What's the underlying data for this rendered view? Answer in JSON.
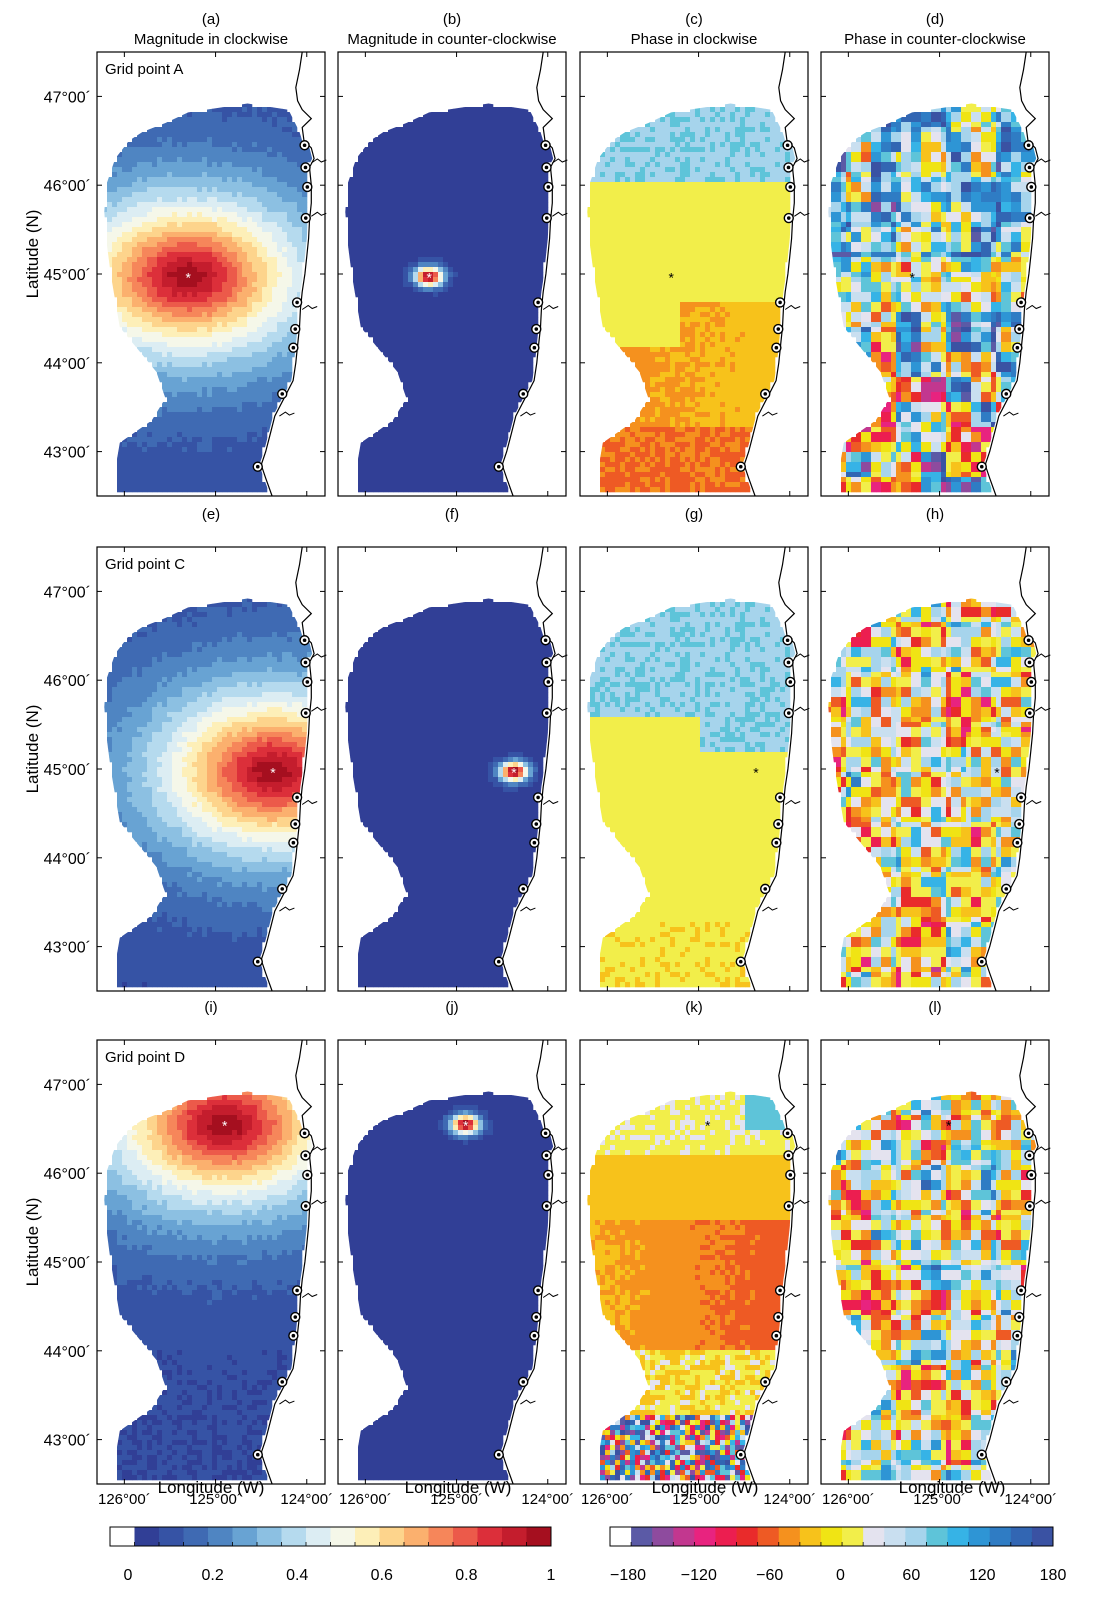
{
  "rows": [
    {
      "panels": [
        {
          "letter": "(a)",
          "title": "Magnitude in clockwise",
          "kind": "mag",
          "broad": true,
          "point_label": "Grid point A"
        },
        {
          "letter": "(b)",
          "title": "Magnitude in counter-clockwise",
          "kind": "mag",
          "broad": false
        },
        {
          "letter": "(c)",
          "title": "Phase in clockwise",
          "kind": "phase_cw",
          "scheme": "A"
        },
        {
          "letter": "(d)",
          "title": "Phase in counter-clockwise",
          "kind": "phase_ccw",
          "scheme": "A"
        }
      ],
      "point": {
        "lon": -125.3,
        "lat": 44.97
      }
    },
    {
      "panels": [
        {
          "letter": "(e)",
          "title": "",
          "kind": "mag",
          "broad": true,
          "point_label": "Grid point C"
        },
        {
          "letter": "(f)",
          "title": "",
          "kind": "mag",
          "broad": false
        },
        {
          "letter": "(g)",
          "title": "",
          "kind": "phase_cw",
          "scheme": "C"
        },
        {
          "letter": "(h)",
          "title": "",
          "kind": "phase_ccw",
          "scheme": "C"
        }
      ],
      "point": {
        "lon": -124.37,
        "lat": 44.97
      }
    },
    {
      "panels": [
        {
          "letter": "(i)",
          "title": "",
          "kind": "mag",
          "broad": true,
          "point_label": "Grid point D"
        },
        {
          "letter": "(j)",
          "title": "",
          "kind": "mag",
          "broad": false
        },
        {
          "letter": "(k)",
          "title": "",
          "kind": "phase_cw",
          "scheme": "D"
        },
        {
          "letter": "(l)",
          "title": "",
          "kind": "phase_ccw",
          "scheme": "D"
        }
      ],
      "point": {
        "lon": -124.9,
        "lat": 46.55
      }
    }
  ],
  "axes": {
    "ylabel": "Latitude (N)",
    "xlabel": "Longitude (W)",
    "lat_range": [
      42.5,
      47.5
    ],
    "lon_range": [
      -126.3,
      -123.8
    ],
    "lat_ticks": [
      {
        "value": 47,
        "label": "47°00´"
      },
      {
        "value": 46,
        "label": "46°00´"
      },
      {
        "value": 45,
        "label": "45°00´"
      },
      {
        "value": 44,
        "label": "44°00´"
      },
      {
        "value": 43,
        "label": "43°00´"
      }
    ],
    "lon_ticks": [
      {
        "value": -126,
        "label": "126°00´"
      },
      {
        "value": -125,
        "label": "125°00´"
      },
      {
        "value": -124,
        "label": "124°00´"
      }
    ]
  },
  "stations_lat": [
    46.45,
    46.2,
    45.98,
    45.63,
    44.68,
    44.38,
    44.17,
    43.65,
    42.83
  ],
  "colorbars": [
    {
      "name": "magnitude",
      "ticks": [
        {
          "value": 0,
          "label": "0"
        },
        {
          "value": 0.2,
          "label": "0.2"
        },
        {
          "value": 0.4,
          "label": "0.4"
        },
        {
          "value": 0.6,
          "label": "0.6"
        },
        {
          "value": 0.8,
          "label": "0.8"
        },
        {
          "value": 1,
          "label": "1"
        }
      ],
      "range": [
        0,
        1
      ],
      "colors": [
        "#ffffff",
        "#313f96",
        "#3653a5",
        "#3f6ab3",
        "#4f85c2",
        "#68a3d3",
        "#8cc0e2",
        "#b5daee",
        "#dcedf3",
        "#f5f7e9",
        "#fdefb8",
        "#fdd48c",
        "#fbb06e",
        "#f6865a",
        "#ec5a4a",
        "#dc2f3a",
        "#c41d2d",
        "#a50f1f"
      ]
    },
    {
      "name": "phase",
      "ticks": [
        {
          "value": -180,
          "label": "−180"
        },
        {
          "value": -120,
          "label": "−120"
        },
        {
          "value": -60,
          "label": "−60"
        },
        {
          "value": 0,
          "label": "0"
        },
        {
          "value": 60,
          "label": "60"
        },
        {
          "value": 120,
          "label": "120"
        },
        {
          "value": 180,
          "label": "180"
        }
      ],
      "range": [
        -180,
        180
      ],
      "colors": [
        "#ffffff",
        "#5b5aa6",
        "#8e4b9e",
        "#c2378f",
        "#e8237f",
        "#ec1e50",
        "#e92b2b",
        "#ee5a24",
        "#f5911e",
        "#f7c21b",
        "#f0e414",
        "#f2ee4a",
        "#e4e3ef",
        "#c9dff0",
        "#a6d4ec",
        "#5ec4d9",
        "#36b3e6",
        "#2e95d5",
        "#2f7cc4",
        "#3266b3",
        "#3a52a3"
      ]
    }
  ]
}
